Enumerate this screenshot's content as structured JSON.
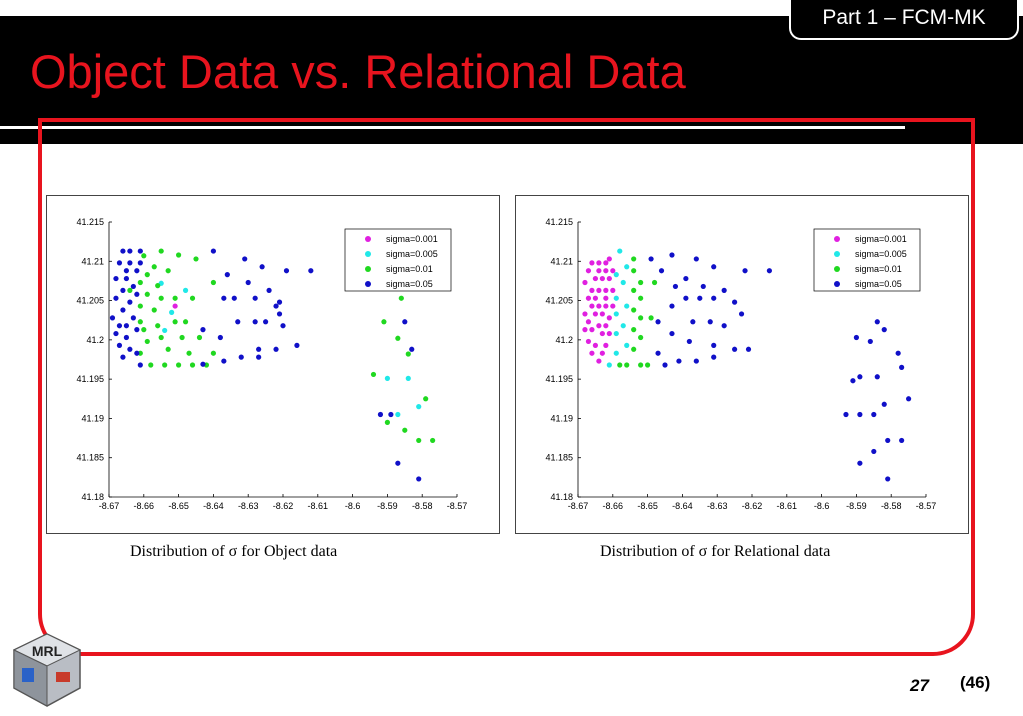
{
  "slide": {
    "title": "Object Data vs. Relational Data",
    "section_tab": "Part 1 – FCM-MK",
    "page_number": "27",
    "page_total": "(46)",
    "logo_text": "MRL"
  },
  "colors": {
    "title_red": "#e8141e",
    "header_black": "#000000",
    "frame_red": "#e8141e"
  },
  "captions": {
    "object": "Distribution of σ for Object data",
    "relational": "Distribution of σ for Relational data"
  },
  "chart_data": [
    {
      "type": "scatter",
      "title": "",
      "xlabel": "",
      "ylabel": "",
      "xlim": [
        -8.67,
        -8.57
      ],
      "ylim": [
        41.18,
        41.215
      ],
      "x_ticks": [
        "-8.67",
        "-8.66",
        "-8.65",
        "-8.64",
        "-8.63",
        "-8.62",
        "-8.61",
        "-8.6",
        "-8.59",
        "-8.58",
        "-8.57"
      ],
      "y_ticks": [
        "41.18",
        "41.185",
        "41.19",
        "41.195",
        "41.2",
        "41.205",
        "41.21",
        "41.215"
      ],
      "legend_position": "top-right",
      "grid": false,
      "series": [
        {
          "name": "sigma=0.001",
          "color": "#e020e0",
          "points": [
            [
              -8.651,
              41.2043
            ]
          ]
        },
        {
          "name": "sigma=0.005",
          "color": "#20e8e8",
          "points": [
            [
              -8.655,
              41.2072
            ],
            [
              -8.648,
              41.2063
            ],
            [
              -8.652,
              41.2035
            ],
            [
              -8.654,
              41.2012
            ],
            [
              -8.59,
              41.1951
            ],
            [
              -8.584,
              41.1951
            ],
            [
              -8.587,
              41.1905
            ],
            [
              -8.581,
              41.1915
            ]
          ]
        },
        {
          "name": "sigma=0.01",
          "color": "#20d820",
          "points": [
            [
              -8.66,
              41.2107
            ],
            [
              -8.655,
              41.2113
            ],
            [
              -8.65,
              41.2108
            ],
            [
              -8.645,
              41.2103
            ],
            [
              -8.657,
              41.2093
            ],
            [
              -8.653,
              41.2088
            ],
            [
              -8.659,
              41.2083
            ],
            [
              -8.661,
              41.2073
            ],
            [
              -8.656,
              41.2069
            ],
            [
              -8.664,
              41.2063
            ],
            [
              -8.659,
              41.2058
            ],
            [
              -8.655,
              41.2053
            ],
            [
              -8.651,
              41.2053
            ],
            [
              -8.646,
              41.2053
            ],
            [
              -8.64,
              41.2073
            ],
            [
              -8.661,
              41.2043
            ],
            [
              -8.657,
              41.2038
            ],
            [
              -8.661,
              41.2023
            ],
            [
              -8.656,
              41.2018
            ],
            [
              -8.651,
              41.2023
            ],
            [
              -8.648,
              41.2023
            ],
            [
              -8.66,
              41.2013
            ],
            [
              -8.655,
              41.2003
            ],
            [
              -8.649,
              41.2003
            ],
            [
              -8.644,
              41.2003
            ],
            [
              -8.659,
              41.1998
            ],
            [
              -8.653,
              41.1988
            ],
            [
              -8.647,
              41.1983
            ],
            [
              -8.64,
              41.1983
            ],
            [
              -8.661,
              41.1983
            ],
            [
              -8.658,
              41.1968
            ],
            [
              -8.654,
              41.1968
            ],
            [
              -8.65,
              41.1968
            ],
            [
              -8.646,
              41.1968
            ],
            [
              -8.642,
              41.1968
            ],
            [
              -8.591,
              41.2023
            ],
            [
              -8.587,
              41.2002
            ],
            [
              -8.594,
              41.1956
            ],
            [
              -8.584,
              41.1982
            ],
            [
              -8.579,
              41.1925
            ],
            [
              -8.585,
              41.1885
            ],
            [
              -8.59,
              41.1895
            ],
            [
              -8.581,
              41.1872
            ],
            [
              -8.577,
              41.1872
            ],
            [
              -8.586,
              41.2053
            ]
          ]
        },
        {
          "name": "sigma=0.05",
          "color": "#1010c8",
          "points": [
            [
              -8.666,
              41.2113
            ],
            [
              -8.664,
              41.2113
            ],
            [
              -8.661,
              41.2113
            ],
            [
              -8.667,
              41.2098
            ],
            [
              -8.664,
              41.2098
            ],
            [
              -8.661,
              41.2098
            ],
            [
              -8.665,
              41.2088
            ],
            [
              -8.662,
              41.2088
            ],
            [
              -8.668,
              41.2078
            ],
            [
              -8.665,
              41.2078
            ],
            [
              -8.663,
              41.2068
            ],
            [
              -8.666,
              41.2063
            ],
            [
              -8.662,
              41.2058
            ],
            [
              -8.668,
              41.2053
            ],
            [
              -8.664,
              41.2048
            ],
            [
              -8.666,
              41.2038
            ],
            [
              -8.669,
              41.2028
            ],
            [
              -8.663,
              41.2028
            ],
            [
              -8.667,
              41.2018
            ],
            [
              -8.665,
              41.2018
            ],
            [
              -8.662,
              41.2013
            ],
            [
              -8.668,
              41.2008
            ],
            [
              -8.665,
              41.2003
            ],
            [
              -8.667,
              41.1993
            ],
            [
              -8.664,
              41.1988
            ],
            [
              -8.662,
              41.1983
            ],
            [
              -8.666,
              41.1978
            ],
            [
              -8.661,
              41.1968
            ],
            [
              -8.64,
              41.2113
            ],
            [
              -8.631,
              41.2103
            ],
            [
              -8.626,
              41.2093
            ],
            [
              -8.619,
              41.2088
            ],
            [
              -8.612,
              41.2088
            ],
            [
              -8.636,
              41.2083
            ],
            [
              -8.63,
              41.2073
            ],
            [
              -8.624,
              41.2063
            ],
            [
              -8.637,
              41.2053
            ],
            [
              -8.634,
              41.2053
            ],
            [
              -8.628,
              41.2053
            ],
            [
              -8.621,
              41.2048
            ],
            [
              -8.622,
              41.2043
            ],
            [
              -8.62,
              41.2018
            ],
            [
              -8.633,
              41.2023
            ],
            [
              -8.628,
              41.2023
            ],
            [
              -8.625,
              41.2023
            ],
            [
              -8.643,
              41.2013
            ],
            [
              -8.638,
              41.2003
            ],
            [
              -8.627,
              41.1988
            ],
            [
              -8.622,
              41.1988
            ],
            [
              -8.616,
              41.1993
            ],
            [
              -8.637,
              41.1973
            ],
            [
              -8.632,
              41.1978
            ],
            [
              -8.627,
              41.1978
            ],
            [
              -8.643,
              41.1969
            ],
            [
              -8.621,
              41.2033
            ],
            [
              -8.585,
              41.2023
            ],
            [
              -8.583,
              41.1988
            ],
            [
              -8.589,
              41.1905
            ],
            [
              -8.587,
              41.1843
            ],
            [
              -8.581,
              41.1823
            ],
            [
              -8.592,
              41.1905
            ]
          ]
        }
      ]
    },
    {
      "type": "scatter",
      "title": "",
      "xlabel": "",
      "ylabel": "",
      "xlim": [
        -8.67,
        -8.57
      ],
      "ylim": [
        41.18,
        41.215
      ],
      "x_ticks": [
        "-8.67",
        "-8.66",
        "-8.65",
        "-8.64",
        "-8.63",
        "-8.62",
        "-8.61",
        "-8.6",
        "-8.59",
        "-8.58",
        "-8.57"
      ],
      "y_ticks": [
        "41.18",
        "41.185",
        "41.19",
        "41.195",
        "41.2",
        "41.205",
        "41.21",
        "41.215"
      ],
      "legend_position": "top-right",
      "grid": false,
      "series": [
        {
          "name": "sigma=0.001",
          "color": "#e020e0",
          "points": [
            [
              -8.666,
              41.2098
            ],
            [
              -8.664,
              41.2098
            ],
            [
              -8.662,
              41.2098
            ],
            [
              -8.661,
              41.2103
            ],
            [
              -8.667,
              41.2088
            ],
            [
              -8.664,
              41.2088
            ],
            [
              -8.662,
              41.2088
            ],
            [
              -8.66,
              41.2088
            ],
            [
              -8.665,
              41.2078
            ],
            [
              -8.663,
              41.2078
            ],
            [
              -8.661,
              41.2078
            ],
            [
              -8.668,
              41.2073
            ],
            [
              -8.666,
              41.2063
            ],
            [
              -8.664,
              41.2063
            ],
            [
              -8.662,
              41.2063
            ],
            [
              -8.66,
              41.2063
            ],
            [
              -8.667,
              41.2053
            ],
            [
              -8.665,
              41.2053
            ],
            [
              -8.662,
              41.2053
            ],
            [
              -8.666,
              41.2043
            ],
            [
              -8.664,
              41.2043
            ],
            [
              -8.662,
              41.2043
            ],
            [
              -8.66,
              41.2043
            ],
            [
              -8.668,
              41.2033
            ],
            [
              -8.665,
              41.2033
            ],
            [
              -8.663,
              41.2033
            ],
            [
              -8.661,
              41.2028
            ],
            [
              -8.667,
              41.2023
            ],
            [
              -8.664,
              41.2018
            ],
            [
              -8.662,
              41.2018
            ],
            [
              -8.668,
              41.2013
            ],
            [
              -8.666,
              41.2013
            ],
            [
              -8.663,
              41.2008
            ],
            [
              -8.661,
              41.2008
            ],
            [
              -8.667,
              41.1998
            ],
            [
              -8.665,
              41.1993
            ],
            [
              -8.662,
              41.1993
            ],
            [
              -8.666,
              41.1983
            ],
            [
              -8.663,
              41.1983
            ],
            [
              -8.664,
              41.1973
            ]
          ]
        },
        {
          "name": "sigma=0.005",
          "color": "#20e8e8",
          "points": [
            [
              -8.658,
              41.2113
            ],
            [
              -8.656,
              41.2093
            ],
            [
              -8.659,
              41.2083
            ],
            [
              -8.657,
              41.2073
            ],
            [
              -8.659,
              41.2053
            ],
            [
              -8.656,
              41.2043
            ],
            [
              -8.659,
              41.2033
            ],
            [
              -8.657,
              41.2018
            ],
            [
              -8.659,
              41.2008
            ],
            [
              -8.656,
              41.1993
            ],
            [
              -8.659,
              41.1983
            ],
            [
              -8.661,
              41.1968
            ]
          ]
        },
        {
          "name": "sigma=0.01",
          "color": "#20d820",
          "points": [
            [
              -8.654,
              41.2103
            ],
            [
              -8.654,
              41.2088
            ],
            [
              -8.652,
              41.2073
            ],
            [
              -8.654,
              41.2063
            ],
            [
              -8.652,
              41.2053
            ],
            [
              -8.654,
              41.2038
            ],
            [
              -8.652,
              41.2028
            ],
            [
              -8.654,
              41.2013
            ],
            [
              -8.652,
              41.2003
            ],
            [
              -8.654,
              41.1988
            ],
            [
              -8.656,
              41.1968
            ],
            [
              -8.652,
              41.1968
            ],
            [
              -8.658,
              41.1968
            ],
            [
              -8.65,
              41.1968
            ],
            [
              -8.648,
              41.2073
            ],
            [
              -8.649,
              41.2028
            ]
          ]
        },
        {
          "name": "sigma=0.05",
          "color": "#1010c8",
          "points": [
            [
              -8.649,
              41.2103
            ],
            [
              -8.643,
              41.2108
            ],
            [
              -8.636,
              41.2103
            ],
            [
              -8.631,
              41.2093
            ],
            [
              -8.622,
              41.2088
            ],
            [
              -8.615,
              41.2088
            ],
            [
              -8.639,
              41.2078
            ],
            [
              -8.646,
              41.2088
            ],
            [
              -8.642,
              41.2068
            ],
            [
              -8.634,
              41.2068
            ],
            [
              -8.628,
              41.2063
            ],
            [
              -8.639,
              41.2053
            ],
            [
              -8.635,
              41.2053
            ],
            [
              -8.631,
              41.2053
            ],
            [
              -8.625,
              41.2048
            ],
            [
              -8.643,
              41.2043
            ],
            [
              -8.647,
              41.2023
            ],
            [
              -8.637,
              41.2023
            ],
            [
              -8.632,
              41.2023
            ],
            [
              -8.628,
              41.2018
            ],
            [
              -8.623,
              41.2033
            ],
            [
              -8.643,
              41.2008
            ],
            [
              -8.638,
              41.1998
            ],
            [
              -8.631,
              41.1993
            ],
            [
              -8.625,
              41.1988
            ],
            [
              -8.621,
              41.1988
            ],
            [
              -8.647,
              41.1983
            ],
            [
              -8.641,
              41.1973
            ],
            [
              -8.636,
              41.1973
            ],
            [
              -8.631,
              41.1978
            ],
            [
              -8.645,
              41.1968
            ],
            [
              -8.59,
              41.2003
            ],
            [
              -8.584,
              41.2023
            ],
            [
              -8.586,
              41.1998
            ],
            [
              -8.582,
              41.2013
            ],
            [
              -8.578,
              41.1983
            ],
            [
              -8.584,
              41.1953
            ],
            [
              -8.591,
              41.1948
            ],
            [
              -8.589,
              41.1953
            ],
            [
              -8.577,
              41.1965
            ],
            [
              -8.582,
              41.1918
            ],
            [
              -8.585,
              41.1905
            ],
            [
              -8.593,
              41.1905
            ],
            [
              -8.589,
              41.1905
            ],
            [
              -8.575,
              41.1925
            ],
            [
              -8.581,
              41.1872
            ],
            [
              -8.577,
              41.1872
            ],
            [
              -8.585,
              41.1858
            ],
            [
              -8.589,
              41.1843
            ],
            [
              -8.581,
              41.1823
            ]
          ]
        }
      ]
    }
  ]
}
